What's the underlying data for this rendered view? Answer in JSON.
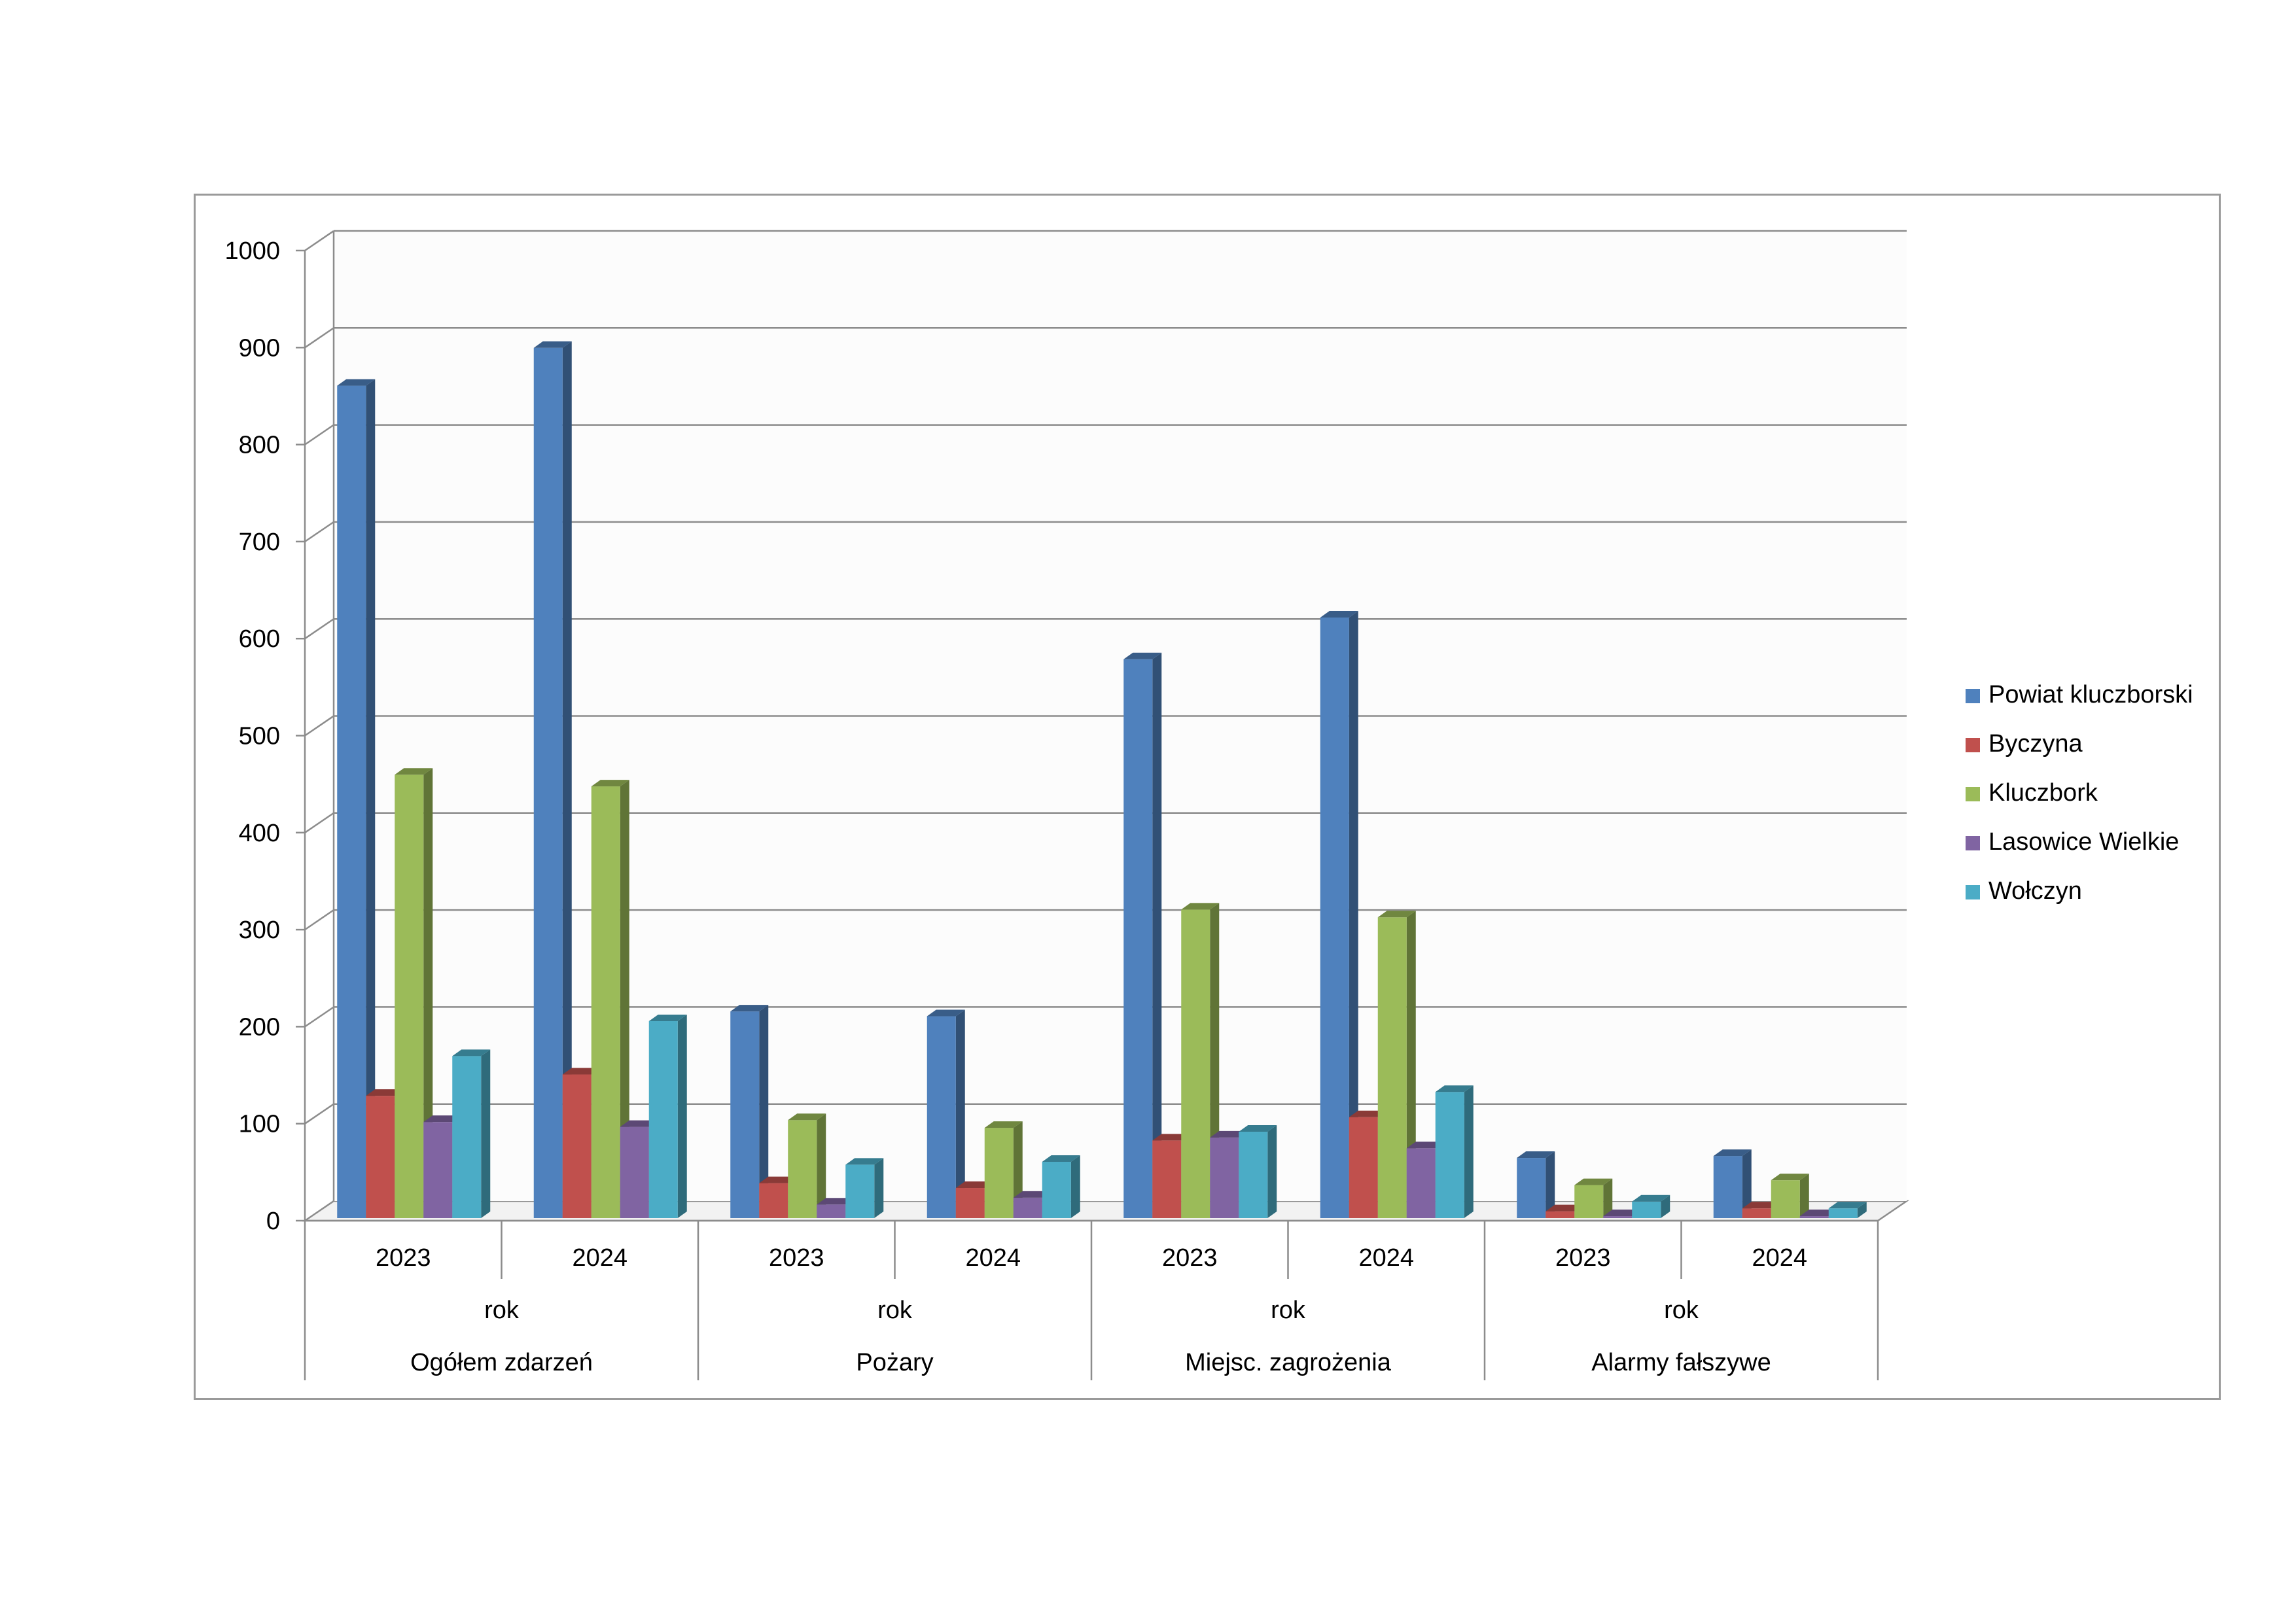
{
  "chart_data": {
    "type": "bar",
    "style": "3d-clustered-column",
    "title": "",
    "xlabel": "",
    "ylabel": "",
    "ylim": [
      0,
      1000
    ],
    "yticks": [
      0,
      100,
      200,
      300,
      400,
      500,
      600,
      700,
      800,
      900,
      1000
    ],
    "grid": true,
    "legend_position": "right",
    "group_level2_label": "rok",
    "groups": [
      "Ogółem zdarzeń",
      "Pożary",
      "Miejsc. zagrożenia",
      "Alarmy fałszywe"
    ],
    "years": [
      "2023",
      "2024"
    ],
    "categories": [
      "Ogółem zdarzeń 2023",
      "Ogółem zdarzeń 2024",
      "Pożary 2023",
      "Pożary 2024",
      "Miejsc. zagrożenia 2023",
      "Miejsc. zagrożenia 2024",
      "Alarmy fałszywe 2023",
      "Alarmy fałszywe 2024"
    ],
    "series": [
      {
        "name": "Powiat kluczborski",
        "color": "#4F81BD",
        "values": [
          858,
          897,
          213,
          208,
          576,
          619,
          62,
          64
        ]
      },
      {
        "name": "Byczyna",
        "color": "#C0504D",
        "values": [
          126,
          148,
          36,
          31,
          80,
          104,
          7,
          10
        ]
      },
      {
        "name": "Kluczbork",
        "color": "#9BBB59",
        "values": [
          457,
          445,
          101,
          93,
          318,
          310,
          34,
          39
        ]
      },
      {
        "name": "Lasowice Wielkie",
        "color": "#8064A2",
        "values": [
          99,
          94,
          14,
          21,
          83,
          72,
          2,
          2
        ]
      },
      {
        "name": "Wołczyn",
        "color": "#4BACC6",
        "values": [
          167,
          203,
          55,
          58,
          89,
          130,
          17,
          10
        ]
      }
    ]
  }
}
